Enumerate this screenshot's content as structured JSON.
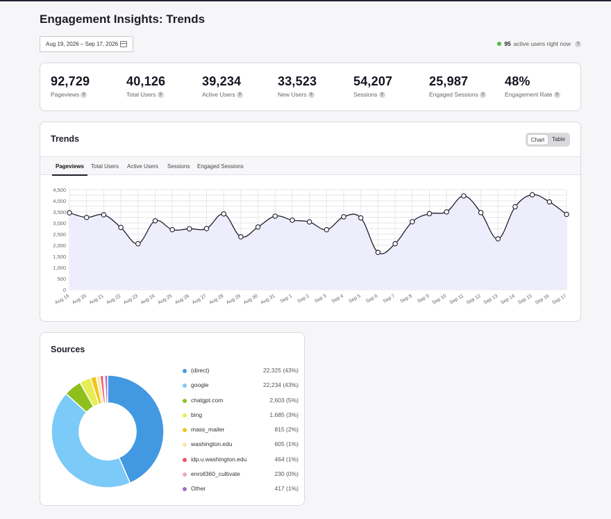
{
  "page": {
    "title": "Engagement Insights: Trends"
  },
  "date_range": {
    "label": "Aug 19, 2026 – Sep 17, 2026",
    "icon": "calendar-icon"
  },
  "active_now": {
    "count": "95",
    "label": "active users right now",
    "help_icon": "?"
  },
  "stats": [
    {
      "value": "92,729",
      "label": "Pageviews"
    },
    {
      "value": "40,126",
      "label": "Total Users"
    },
    {
      "value": "39,234",
      "label": "Active Users"
    },
    {
      "value": "33,523",
      "label": "New Users"
    },
    {
      "value": "54,207",
      "label": "Sessions"
    },
    {
      "value": "25,987",
      "label": "Engaged Sessions"
    },
    {
      "value": "48%",
      "label": "Engagement Rate"
    }
  ],
  "trends": {
    "title": "Trends",
    "toggle": {
      "chart": "Chart",
      "table": "Table",
      "selected": "Chart"
    },
    "tabs": [
      "Pageviews",
      "Total Users",
      "Active Users",
      "Sessions",
      "Engaged Sessions"
    ],
    "active_tab": "Pageviews"
  },
  "chart_data": {
    "type": "area",
    "title": "",
    "xlabel": "",
    "ylabel": "",
    "ylim": [
      0,
      4500
    ],
    "yticks": [
      0,
      250,
      500,
      750,
      1000,
      1250,
      1500,
      1750,
      2000,
      2250,
      2500,
      2750,
      3000,
      3250,
      3500,
      3750,
      4000,
      4250,
      4500
    ],
    "yticklabels": [
      "0",
      "",
      "500",
      "",
      "1,000",
      "",
      "1,500",
      "",
      "2,000",
      "",
      "2,500",
      "",
      "3,000",
      "",
      "3,500",
      "",
      "4,000",
      "",
      "4,500"
    ],
    "grid": true,
    "x": [
      "Aug 19",
      "Aug 20",
      "Aug 21",
      "Aug 22",
      "Aug 23",
      "Aug 24",
      "Aug 25",
      "Aug 26",
      "Aug 27",
      "Aug 28",
      "Aug 29",
      "Aug 30",
      "Aug 31",
      "Sep 1",
      "Sep 2",
      "Sep 3",
      "Sep 4",
      "Sep 5",
      "Sep 6",
      "Sep 7",
      "Sep 8",
      "Sep 9",
      "Sep 10",
      "Sep 11",
      "Sep 12",
      "Sep 13",
      "Sep 14",
      "Sep 15",
      "Sep 16",
      "Sep 17"
    ],
    "series": [
      {
        "values": [
          3460,
          3250,
          3370,
          2800,
          2070,
          3100,
          2700,
          2740,
          2750,
          3410,
          2380,
          2820,
          3310,
          3130,
          3050,
          2700,
          3280,
          3230,
          1680,
          2070,
          3060,
          3420,
          3500,
          4220,
          3470,
          2290,
          3730,
          4270,
          3950,
          3390
        ]
      }
    ],
    "colors": {
      "line": "#1d1d2b",
      "fill": "#eeedfb",
      "grid": "#e6e6ea",
      "point_fill": "#ffffff"
    }
  },
  "sources": {
    "title": "Sources",
    "items": [
      {
        "name": "(direct)",
        "value": 22325,
        "display": "22,325 (43%)",
        "color": "#4299e1"
      },
      {
        "name": "google",
        "value": 22234,
        "display": "22,234 (43%)",
        "color": "#7ccaf8"
      },
      {
        "name": "chatgpt.com",
        "value": 2603,
        "display": "2,603 (5%)",
        "color": "#8fbf1c"
      },
      {
        "name": "bing",
        "value": 1685,
        "display": "1,685 (3%)",
        "color": "#e8ec55"
      },
      {
        "name": "mass_mailer",
        "value": 815,
        "display": "815 (2%)",
        "color": "#f2c31a"
      },
      {
        "name": "washington.edu",
        "value": 605,
        "display": "605 (1%)",
        "color": "#fbe8a8"
      },
      {
        "name": "idp.u.washington.edu",
        "value": 464,
        "display": "464 (1%)",
        "color": "#ea5566"
      },
      {
        "name": "enroll360_cultivate",
        "value": 230,
        "display": "230 (0%)",
        "color": "#f4a7b6"
      },
      {
        "name": "Other",
        "value": 417,
        "display": "417 (1%)",
        "color": "#a96cc6"
      }
    ]
  }
}
